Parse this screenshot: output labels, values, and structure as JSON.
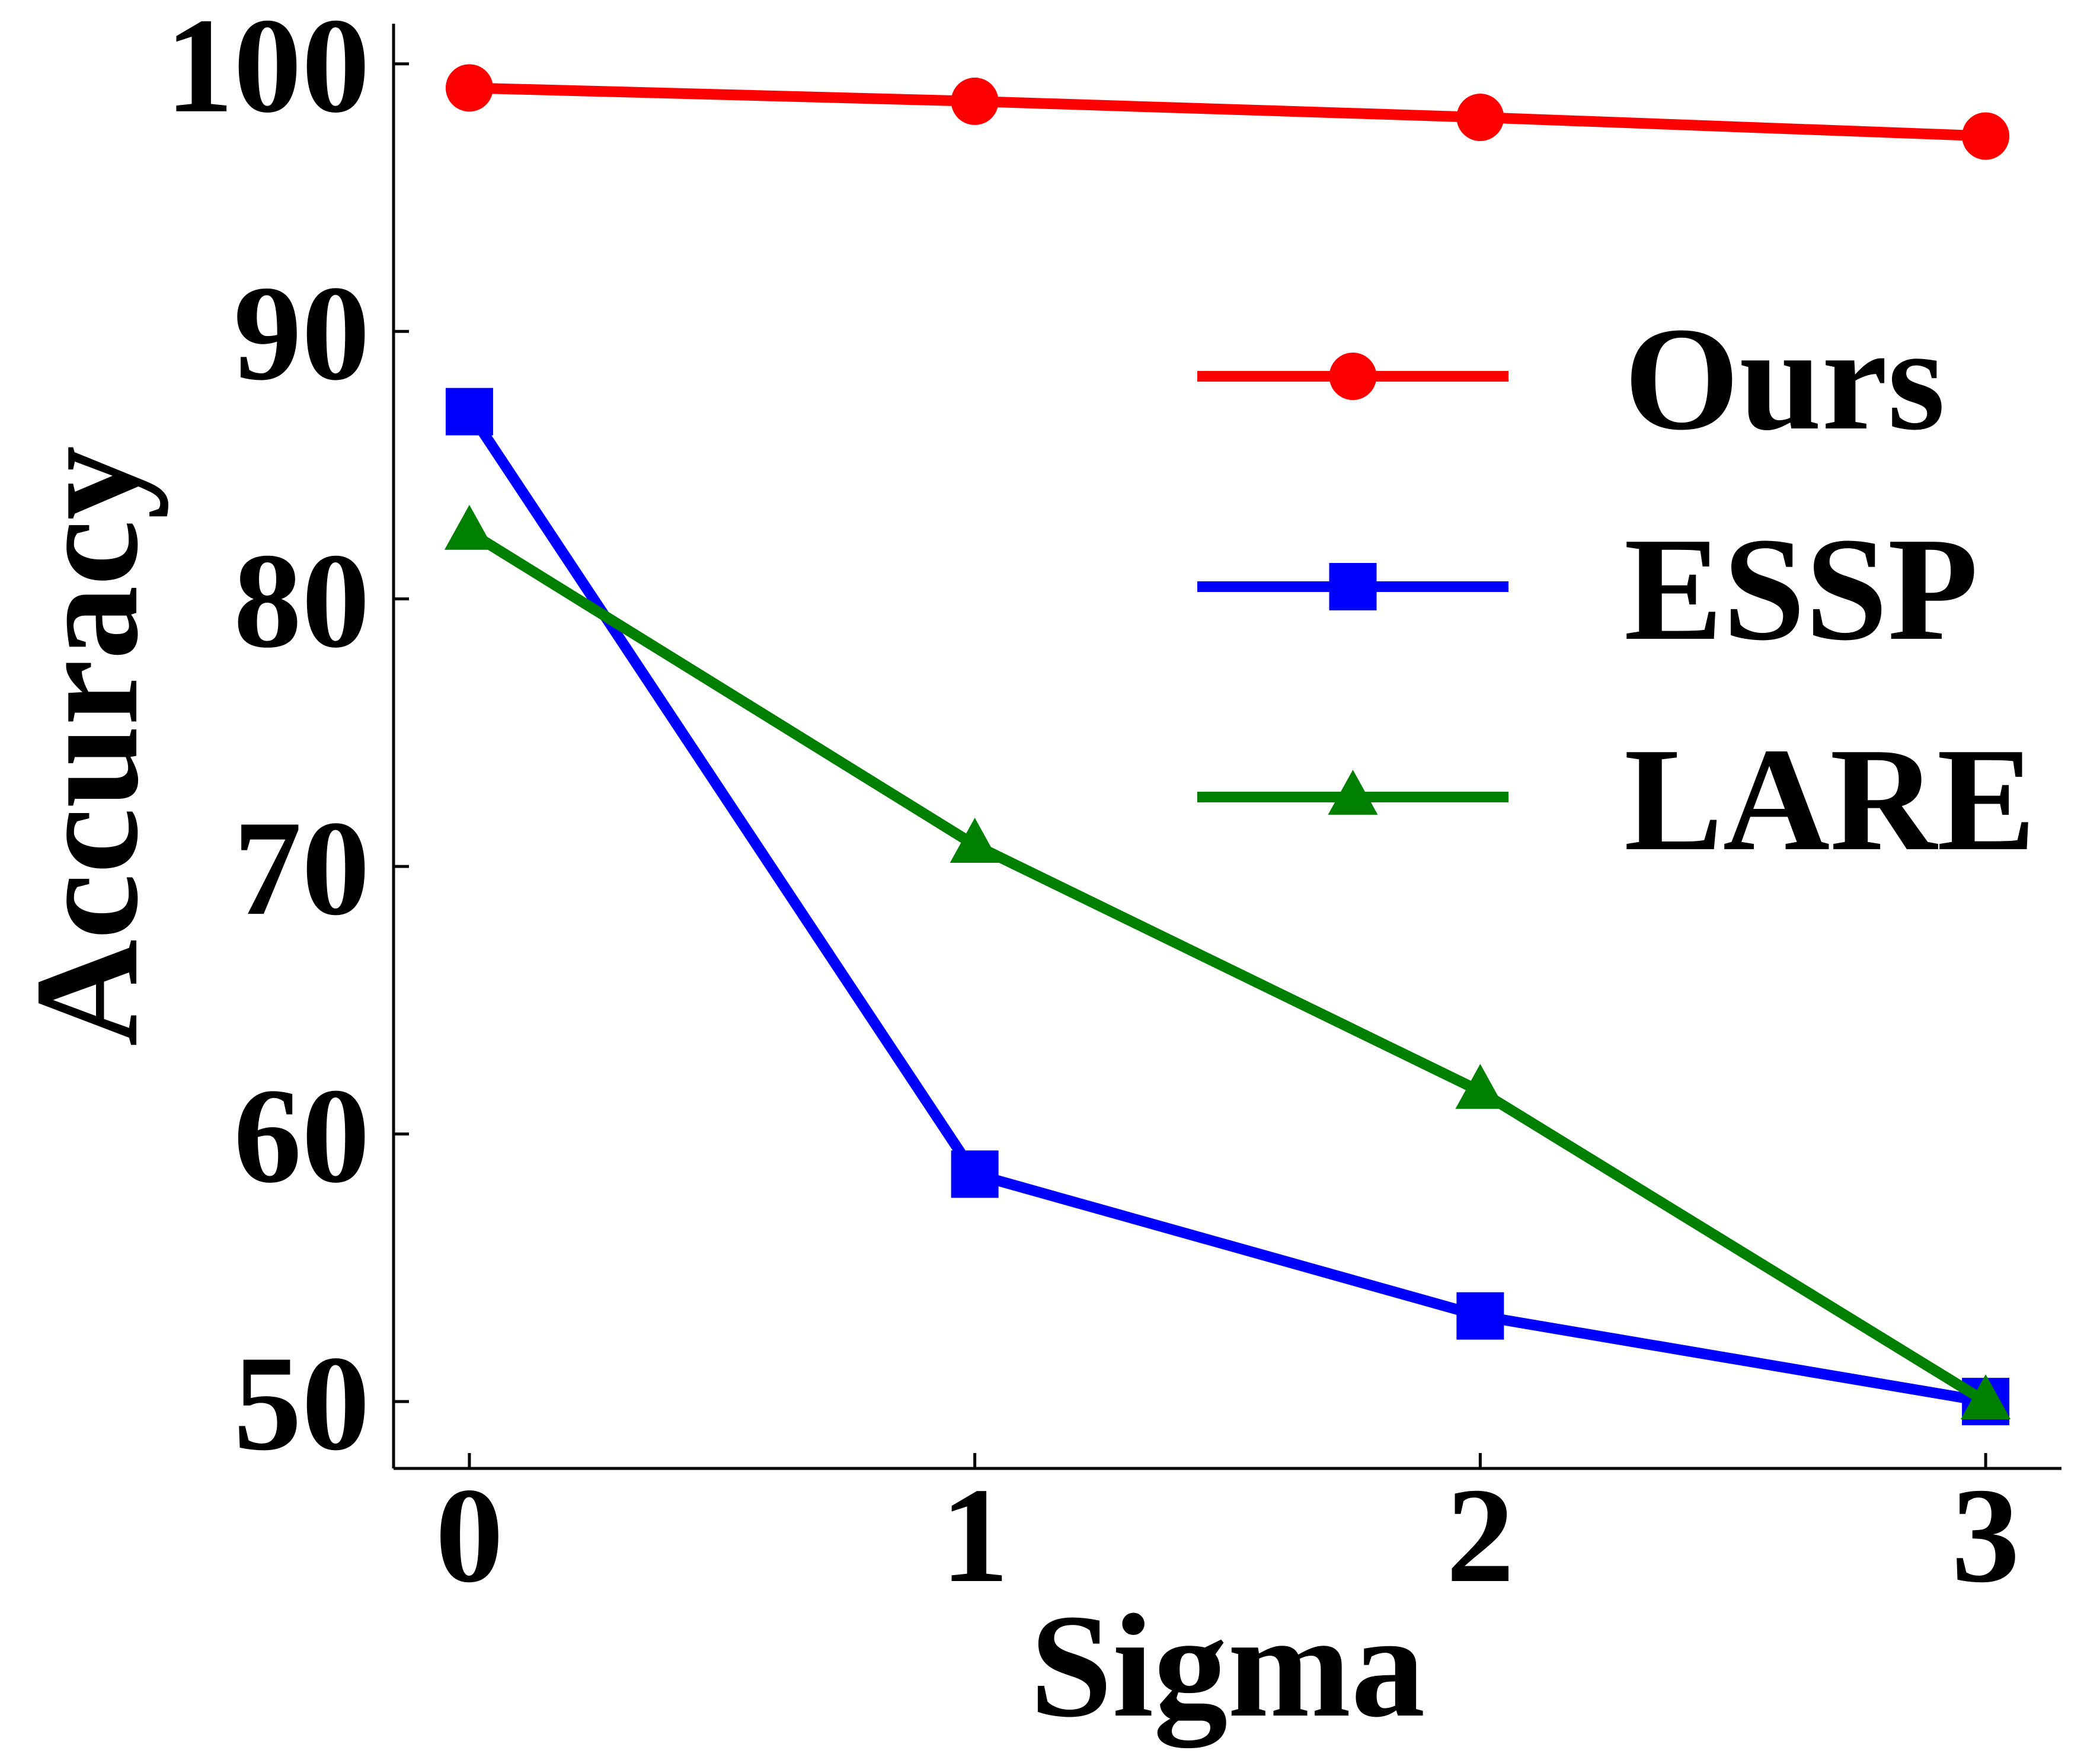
{
  "chart_data": {
    "type": "line",
    "xlabel": "Sigma",
    "ylabel": "Accuracy",
    "x": [
      0,
      1,
      2,
      3
    ],
    "x_ticks": [
      "0",
      "1",
      "2",
      "3"
    ],
    "y_ticks": [
      "50",
      "60",
      "70",
      "80",
      "90",
      "100"
    ],
    "xlim": [
      -0.15,
      3.15
    ],
    "ylim": [
      47.5,
      101.5
    ],
    "grid": false,
    "legend_position": "right-upper",
    "series": [
      {
        "name": "Ours",
        "values": [
          99.1,
          98.6,
          98.0,
          97.3
        ],
        "color": "#ff0000",
        "marker": "circle"
      },
      {
        "name": "ESSP",
        "values": [
          87.0,
          58.5,
          53.2,
          50.0
        ],
        "color": "#0000ff",
        "marker": "square"
      },
      {
        "name": "LARE",
        "values": [
          82.5,
          70.8,
          61.6,
          50.0
        ],
        "color": "#008000",
        "marker": "triangle"
      }
    ]
  }
}
